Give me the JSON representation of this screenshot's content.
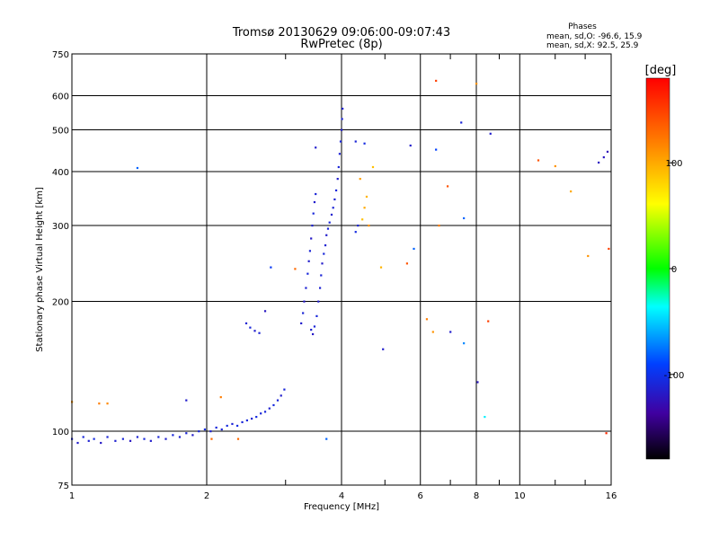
{
  "chart_data": {
    "type": "scatter",
    "title": "Tromsø 20130629 09:06:00-09:07:43",
    "subtitle": "RwPretec (8p)",
    "xlabel": "Frequency [MHz]",
    "ylabel": "Stationary phase Virtual Height [km]",
    "xscale": "log",
    "yscale": "log",
    "xlim": [
      1,
      16
    ],
    "ylim": [
      75,
      750
    ],
    "grid": true,
    "x_ticks": [
      1,
      2,
      4,
      6,
      8,
      10,
      16
    ],
    "x_tick_labels": [
      "1",
      "2",
      "4",
      "6",
      "8",
      "10",
      "16"
    ],
    "y_ticks": [
      75,
      100,
      200,
      300,
      400,
      500,
      600,
      750
    ],
    "y_tick_labels": [
      "75",
      "100",
      "200",
      "300",
      "400",
      "500",
      "600",
      "750"
    ],
    "phase_stats": {
      "heading": "Phases",
      "line_O": "mean, sd,O: -96.6, 15.9",
      "line_X": "mean, sd,X:  92.5, 25.9"
    },
    "colorbar": {
      "label": "[deg]",
      "range": [
        -180,
        180
      ],
      "ticks": [
        100,
        0,
        -100
      ],
      "tick_labels": [
        "100",
        "0",
        "-100"
      ]
    },
    "series": [
      {
        "values_note_free": true,
        "points": [
          [
            1.0,
            96,
            -110
          ],
          [
            1.03,
            94,
            -115
          ],
          [
            1.06,
            97,
            -108
          ],
          [
            1.09,
            95,
            -112
          ],
          [
            1.12,
            96,
            -105
          ],
          [
            1.16,
            94,
            -118
          ],
          [
            1.2,
            97,
            -110
          ],
          [
            1.25,
            95,
            -113
          ],
          [
            1.3,
            96,
            -109
          ],
          [
            1.35,
            95,
            -120
          ],
          [
            1.4,
            97,
            -111
          ],
          [
            1.45,
            96,
            -107
          ],
          [
            1.5,
            95,
            -115
          ],
          [
            1.56,
            97,
            -110
          ],
          [
            1.62,
            96,
            -114
          ],
          [
            1.68,
            98,
            -108
          ],
          [
            1.74,
            97,
            -112
          ],
          [
            1.8,
            99,
            -110
          ],
          [
            1.86,
            98,
            -116
          ],
          [
            1.92,
            100,
            -109
          ],
          [
            1.98,
            101,
            -105
          ],
          [
            2.04,
            100,
            -112
          ],
          [
            2.1,
            102,
            -108
          ],
          [
            2.16,
            101,
            -110
          ],
          [
            2.22,
            103,
            -106
          ],
          [
            2.28,
            104,
            -111
          ],
          [
            2.34,
            103,
            -104
          ],
          [
            2.4,
            105,
            -109
          ],
          [
            2.46,
            106,
            -107
          ],
          [
            2.52,
            107,
            -112
          ],
          [
            2.58,
            108,
            -105
          ],
          [
            2.64,
            110,
            -110
          ],
          [
            2.7,
            111,
            -108
          ],
          [
            2.76,
            113,
            -113
          ],
          [
            2.82,
            115,
            -106
          ],
          [
            2.88,
            118,
            -110
          ],
          [
            2.93,
            121,
            -115
          ],
          [
            2.98,
            125,
            -108
          ],
          [
            2.45,
            178,
            -112
          ],
          [
            2.5,
            174,
            -108
          ],
          [
            2.56,
            171,
            -115
          ],
          [
            2.62,
            169,
            -110
          ],
          [
            2.7,
            190,
            -120
          ],
          [
            2.78,
            240,
            -95
          ],
          [
            3.25,
            178,
            -115
          ],
          [
            3.28,
            188,
            -110
          ],
          [
            3.3,
            200,
            -118
          ],
          [
            3.33,
            215,
            -112
          ],
          [
            3.36,
            232,
            -108
          ],
          [
            3.38,
            248,
            -115
          ],
          [
            3.4,
            262,
            -110
          ],
          [
            3.42,
            280,
            -118
          ],
          [
            3.44,
            300,
            -112
          ],
          [
            3.46,
            320,
            -108
          ],
          [
            3.48,
            340,
            -115
          ],
          [
            3.5,
            355,
            -110
          ],
          [
            3.42,
            172,
            -112
          ],
          [
            3.45,
            168,
            -118
          ],
          [
            3.48,
            175,
            -110
          ],
          [
            3.52,
            185,
            -108
          ],
          [
            3.55,
            200,
            -115
          ],
          [
            3.58,
            215,
            -112
          ],
          [
            3.6,
            230,
            -110
          ],
          [
            3.62,
            245,
            -116
          ],
          [
            3.65,
            258,
            -108
          ],
          [
            3.68,
            270,
            -112
          ],
          [
            3.7,
            285,
            -115
          ],
          [
            3.73,
            295,
            -110
          ],
          [
            3.76,
            305,
            -108
          ],
          [
            3.8,
            318,
            -114
          ],
          [
            3.83,
            330,
            -110
          ],
          [
            3.86,
            345,
            -112
          ],
          [
            3.89,
            362,
            -108
          ],
          [
            3.92,
            385,
            -115
          ],
          [
            3.94,
            410,
            -110
          ],
          [
            3.96,
            440,
            -112
          ],
          [
            3.98,
            470,
            -108
          ],
          [
            4.0,
            500,
            -115
          ],
          [
            4.01,
            530,
            -110
          ],
          [
            4.02,
            560,
            -112
          ],
          [
            4.3,
            290,
            -105
          ],
          [
            4.35,
            300,
            -110
          ],
          [
            4.45,
            310,
            90
          ],
          [
            4.5,
            330,
            100
          ],
          [
            4.6,
            300,
            110
          ],
          [
            4.55,
            350,
            95
          ],
          [
            4.4,
            385,
            105
          ],
          [
            4.7,
            410,
            90
          ],
          [
            4.3,
            470,
            -110
          ],
          [
            4.5,
            465,
            -105
          ],
          [
            3.5,
            455,
            -115
          ],
          [
            4.9,
            240,
            95
          ],
          [
            4.95,
            155,
            -115
          ],
          [
            3.15,
            238,
            130
          ],
          [
            3.7,
            96,
            -80
          ],
          [
            1.0,
            117,
            110
          ],
          [
            1.15,
            116,
            120
          ],
          [
            1.2,
            116,
            115
          ],
          [
            1.4,
            408,
            -80
          ],
          [
            1.8,
            118,
            -115
          ],
          [
            2.15,
            120,
            120
          ],
          [
            2.05,
            96,
            130
          ],
          [
            2.35,
            96,
            130
          ],
          [
            5.7,
            460,
            -115
          ],
          [
            5.6,
            245,
            140
          ],
          [
            5.8,
            265,
            -80
          ],
          [
            6.2,
            182,
            120
          ],
          [
            6.4,
            170,
            110
          ],
          [
            6.5,
            650,
            150
          ],
          [
            6.5,
            450,
            -90
          ],
          [
            6.6,
            300,
            120
          ],
          [
            6.9,
            370,
            140
          ],
          [
            7.0,
            170,
            -115
          ],
          [
            7.4,
            520,
            -110
          ],
          [
            7.5,
            312,
            -80
          ],
          [
            7.5,
            160,
            -70
          ],
          [
            8.05,
            130,
            -120
          ],
          [
            8.35,
            108,
            -40
          ],
          [
            8.5,
            180,
            150
          ],
          [
            8.6,
            490,
            -115
          ],
          [
            8.0,
            640,
            110
          ],
          [
            11.0,
            425,
            140
          ],
          [
            12.0,
            412,
            110
          ],
          [
            13.0,
            360,
            100
          ],
          [
            14.2,
            255,
            110
          ],
          [
            15.0,
            420,
            -120
          ],
          [
            15.4,
            432,
            -120
          ],
          [
            15.7,
            445,
            -125
          ],
          [
            15.8,
            265,
            150
          ],
          [
            15.6,
            99,
            160
          ]
        ]
      }
    ]
  }
}
